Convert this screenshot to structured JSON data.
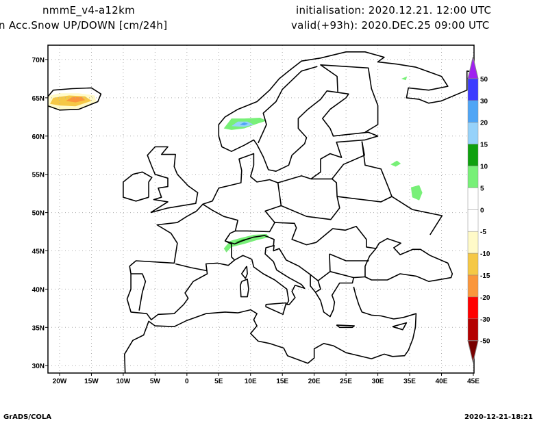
{
  "header": {
    "model": "nmmE_v4-a12km",
    "field": "n Acc.Snow UP/DOWN [cm/24h]",
    "init": "initialisation: 2020.12.21.  12:00 UTC",
    "valid": "valid(+93h): 2020.DEC.25 09:00 UTC"
  },
  "map": {
    "lon_range": [
      -21.8,
      45
    ],
    "lat_range": [
      29,
      71.9
    ],
    "lon_ticks": [
      {
        "v": -20,
        "label": "20W"
      },
      {
        "v": -15,
        "label": "15W"
      },
      {
        "v": -10,
        "label": "10W"
      },
      {
        "v": -5,
        "label": "5W"
      },
      {
        "v": 0,
        "label": "0"
      },
      {
        "v": 5,
        "label": "5E"
      },
      {
        "v": 10,
        "label": "10E"
      },
      {
        "v": 15,
        "label": "15E"
      },
      {
        "v": 20,
        "label": "20E"
      },
      {
        "v": 25,
        "label": "25E"
      },
      {
        "v": 30,
        "label": "30E"
      },
      {
        "v": 35,
        "label": "35E"
      },
      {
        "v": 40,
        "label": "40E"
      },
      {
        "v": 45,
        "label": "45E"
      }
    ],
    "lat_ticks": [
      {
        "v": 30,
        "label": "30N"
      },
      {
        "v": 35,
        "label": "35N"
      },
      {
        "v": 40,
        "label": "40N"
      },
      {
        "v": 45,
        "label": "45N"
      },
      {
        "v": 50,
        "label": "50N"
      },
      {
        "v": 55,
        "label": "55N"
      },
      {
        "v": 60,
        "label": "60N"
      },
      {
        "v": 65,
        "label": "65N"
      },
      {
        "v": 70,
        "label": "70N"
      }
    ]
  },
  "colorbar": {
    "labels": [
      "50",
      "30",
      "20",
      "15",
      "10",
      "5",
      "0",
      "-5",
      "-10",
      "-15",
      "-20",
      "-30",
      "-50"
    ],
    "colors": [
      "#a020f0",
      "#3c3cff",
      "#50a5f5",
      "#96d2fa",
      "#0fa00f",
      "#78f078",
      "#ffffff",
      "#ffffff",
      "#fffac8",
      "#f5c846",
      "#fa963c",
      "#ff0000",
      "#b40000",
      "#780000"
    ]
  },
  "footer": {
    "left": "GrADS/COLA",
    "right": "2020-12-21-18:21"
  }
}
